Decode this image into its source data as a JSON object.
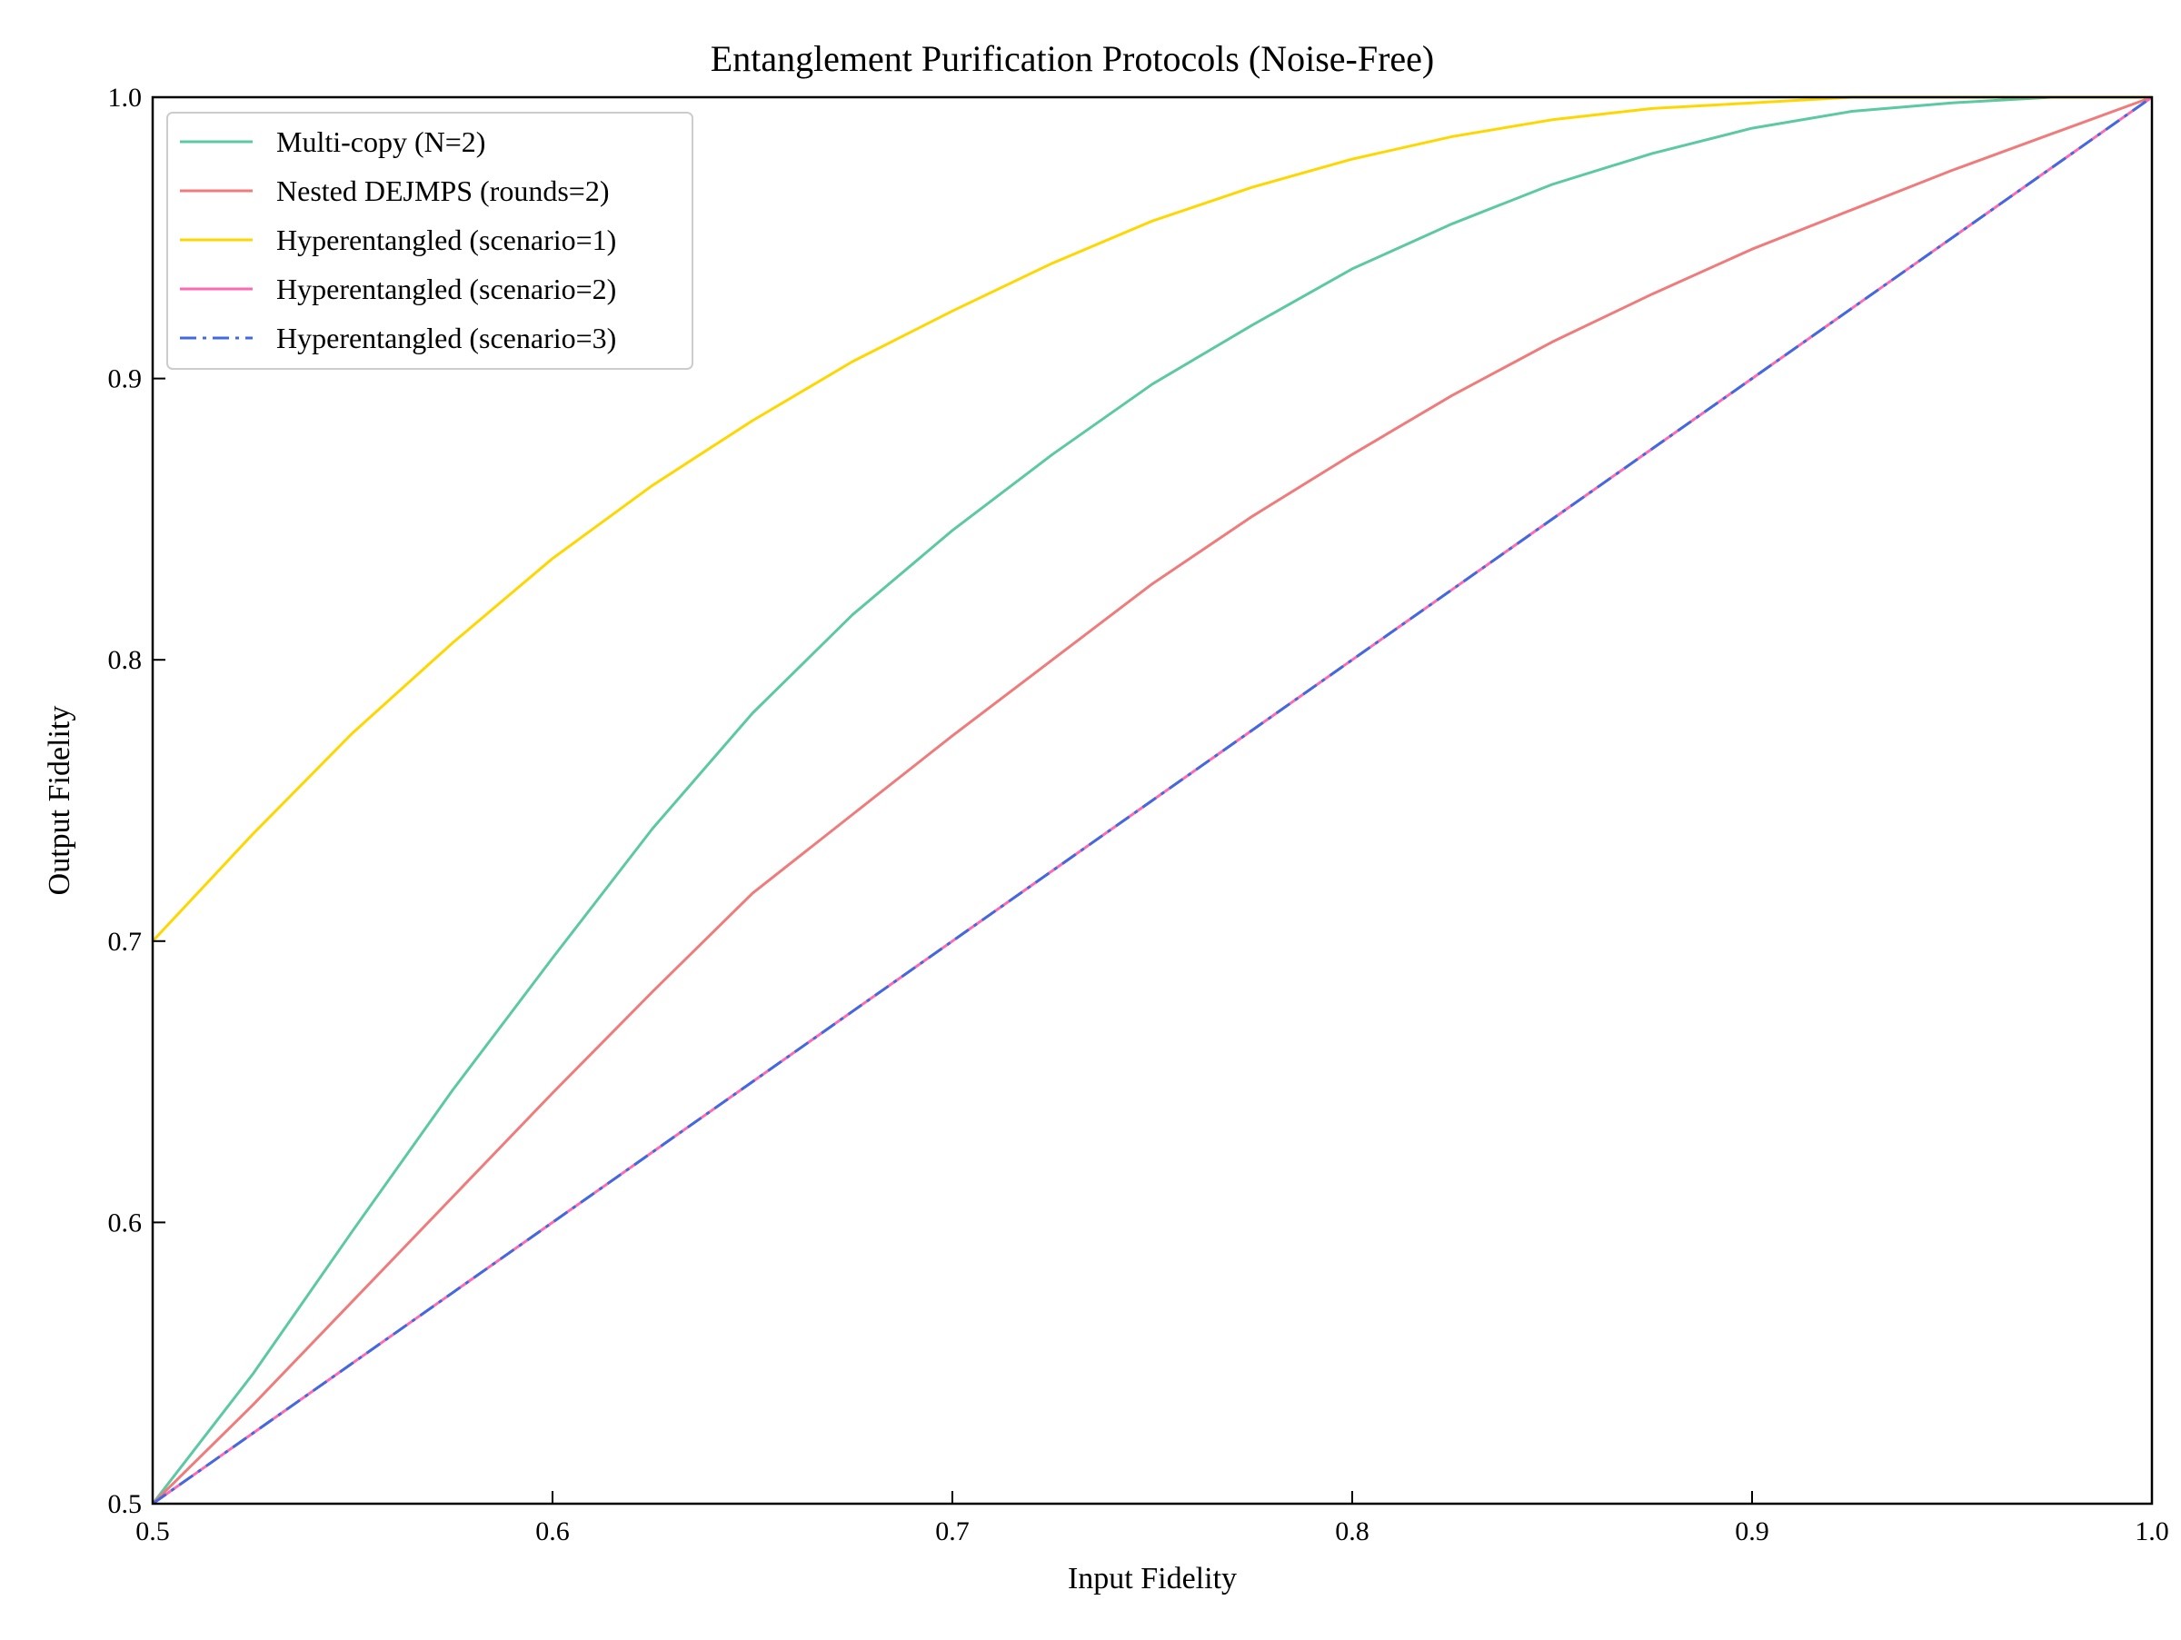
{
  "chart_data": {
    "type": "line",
    "title": "Entanglement Purification Protocols (Noise-Free)",
    "xlabel": "Input Fidelity",
    "ylabel": "Output Fidelity",
    "xlim": [
      0.5,
      1.0
    ],
    "ylim": [
      0.5,
      1.0
    ],
    "xticks": [
      "0.5",
      "0.6",
      "0.7",
      "0.8",
      "0.9",
      "1.0"
    ],
    "yticks": [
      "0.5",
      "0.6",
      "0.7",
      "0.8",
      "0.9",
      "1.0"
    ],
    "grid": false,
    "legend_position": "top-left",
    "x": [
      0.5,
      0.525,
      0.55,
      0.575,
      0.6,
      0.625,
      0.65,
      0.675,
      0.7,
      0.725,
      0.75,
      0.775,
      0.8,
      0.825,
      0.85,
      0.875,
      0.9,
      0.925,
      0.95,
      0.975,
      1.0
    ],
    "series": [
      {
        "name": "Multi-copy (N=2)",
        "color": "#5cc8a4",
        "dash": "solid",
        "values": [
          0.5,
          0.546,
          0.597,
          0.647,
          0.694,
          0.74,
          0.781,
          0.816,
          0.846,
          0.873,
          0.898,
          0.919,
          0.939,
          0.955,
          0.969,
          0.98,
          0.989,
          0.995,
          0.998,
          1.0,
          1.0
        ]
      },
      {
        "name": "Nested DEJMPS (rounds=2)",
        "color": "#ef7b7b",
        "dash": "solid",
        "values": [
          0.5,
          0.535,
          0.572,
          0.609,
          0.646,
          0.682,
          0.717,
          0.745,
          0.773,
          0.8,
          0.827,
          0.851,
          0.873,
          0.894,
          0.913,
          0.93,
          0.946,
          0.96,
          0.974,
          0.987,
          1.0
        ]
      },
      {
        "name": "Hyperentangled (scenario=1)",
        "color": "#ffd700",
        "dash": "solid",
        "values": [
          0.7,
          0.738,
          0.774,
          0.806,
          0.836,
          0.862,
          0.885,
          0.906,
          0.924,
          0.941,
          0.956,
          0.968,
          0.978,
          0.986,
          0.992,
          0.996,
          0.998,
          1.0,
          1.0,
          1.0,
          1.0
        ]
      },
      {
        "name": "Hyperentangled (scenario=2)",
        "color": "#ff69b4",
        "dash": "solid",
        "values": [
          0.5,
          0.525,
          0.55,
          0.575,
          0.6,
          0.625,
          0.65,
          0.675,
          0.7,
          0.725,
          0.75,
          0.775,
          0.8,
          0.825,
          0.85,
          0.875,
          0.9,
          0.925,
          0.95,
          0.975,
          1.0
        ]
      },
      {
        "name": "Hyperentangled (scenario=3)",
        "color": "#4169e1",
        "dash": "dashdot",
        "values": [
          0.5,
          0.525,
          0.55,
          0.575,
          0.6,
          0.625,
          0.65,
          0.675,
          0.7,
          0.725,
          0.75,
          0.775,
          0.8,
          0.825,
          0.85,
          0.875,
          0.9,
          0.925,
          0.95,
          0.975,
          1.0
        ]
      }
    ]
  }
}
